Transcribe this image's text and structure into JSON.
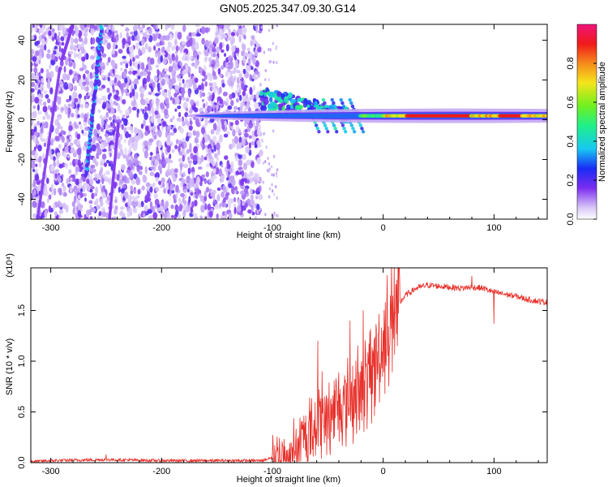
{
  "colors": {
    "snr_line": "#e8302a",
    "frame": "#000000",
    "purple_light": "#d9c6f6",
    "purple_dark": "#6a18e8"
  },
  "chart_data": [
    {
      "type": "heatmap",
      "title": "GN05.2025.347.09.30.G14",
      "xlabel": "Height of straight line (km)",
      "ylabel": "Frequency (Hz)",
      "xlim": [
        -318,
        148
      ],
      "ylim": [
        -50,
        48
      ],
      "xticks": [
        -300,
        -200,
        -100,
        0,
        100
      ],
      "xtick_labels": [
        "-300",
        "-200",
        "-100",
        "0",
        "100"
      ],
      "yticks": [
        -40,
        -20,
        0,
        20,
        40
      ],
      "ytick_labels": [
        "-40",
        "-20",
        "0",
        "20",
        "40"
      ],
      "colorbar": {
        "label": "Normalized spectral amplitude",
        "range": [
          0,
          1
        ],
        "ticks": [
          0.0,
          0.2,
          0.4,
          0.6,
          0.8
        ],
        "tick_labels": [
          "0.0",
          "0.2",
          "0.4",
          "0.6",
          "0.8"
        ],
        "colormap": "rainbow (white-purple-blue-cyan-green-yellow-red-magenta)"
      },
      "features": [
        {
          "name": "noise region",
          "x_range": [
            -318,
            -110
          ],
          "amplitude": "0.0-0.2"
        },
        {
          "name": "diagonal streak",
          "x_start": -268,
          "freq_start": -28,
          "x_end": -254,
          "freq_end": 47
        },
        {
          "name": "transition zone",
          "x_range": [
            -110,
            -20
          ],
          "freq_trend": "from ~10 Hz down to ~0 Hz"
        },
        {
          "name": "carrier band",
          "x_range": [
            -20,
            148
          ],
          "freq": 2,
          "amplitude": "0.6-1.0"
        }
      ]
    },
    {
      "type": "line",
      "xlabel": "Height of straight line (km)",
      "ylabel": "SNR (10 * v/v)",
      "y_multiplier": "(x10⁴)",
      "xlim": [
        -318,
        148
      ],
      "ylim": [
        0,
        1.92
      ],
      "xticks": [
        -300,
        -200,
        -100,
        0,
        100
      ],
      "xtick_labels": [
        "-300",
        "-200",
        "-100",
        "0",
        "100"
      ],
      "yticks": [
        0.0,
        0.5,
        1.0,
        1.5
      ],
      "ytick_labels": [
        "0.0",
        "0.5",
        "1.0",
        "1.5"
      ],
      "series": [
        {
          "name": "SNR",
          "x": [
            -318,
            -300,
            -250,
            -200,
            -150,
            -110,
            -100,
            -90,
            -80,
            -70,
            -60,
            -50,
            -40,
            -30,
            -20,
            -10,
            0,
            10,
            20,
            30,
            40,
            50,
            60,
            70,
            80,
            90,
            100,
            110,
            120,
            130,
            140,
            148
          ],
          "y": [
            0.01,
            0.02,
            0.03,
            0.02,
            0.02,
            0.02,
            0.05,
            0.08,
            0.15,
            0.25,
            0.4,
            0.45,
            0.55,
            0.6,
            0.7,
            0.9,
            1.2,
            1.5,
            1.65,
            1.72,
            1.75,
            1.74,
            1.73,
            1.72,
            1.73,
            1.72,
            1.68,
            1.66,
            1.64,
            1.61,
            1.59,
            1.58
          ],
          "spikes": [
            {
              "x": -250,
              "y": 0.08
            },
            {
              "x": -59,
              "y": 1.2
            },
            {
              "x": -55,
              "y": 0.9
            },
            {
              "x": -30,
              "y": 1.4
            },
            {
              "x": -18,
              "y": 1.5
            },
            {
              "x": 10,
              "y": 1.95
            },
            {
              "x": 80,
              "y": 1.84
            },
            {
              "x": 100,
              "y": 1.37
            }
          ]
        }
      ]
    }
  ]
}
